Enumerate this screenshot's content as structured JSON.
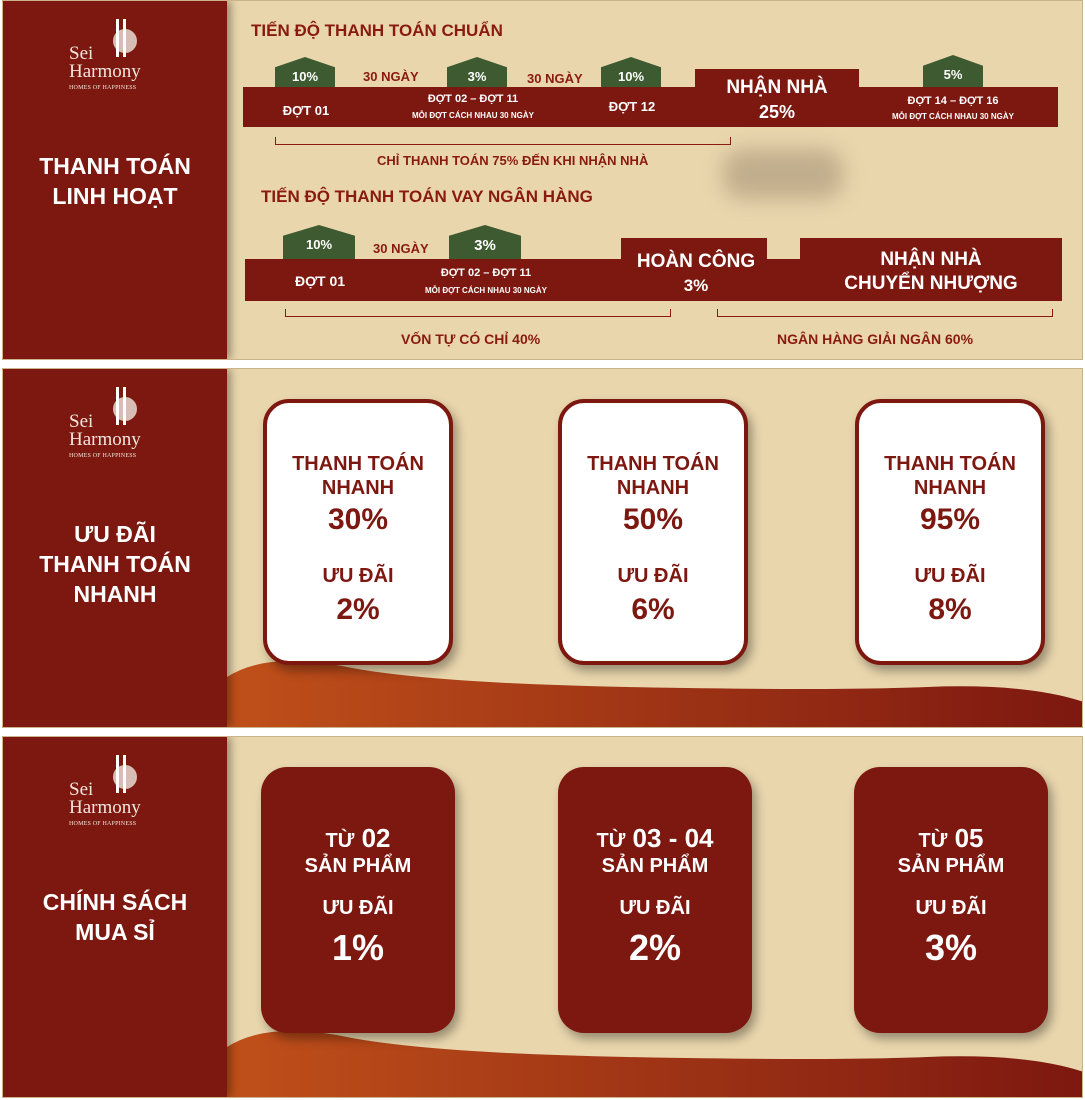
{
  "brand": {
    "name_line1": "Sei",
    "name_line2": "Harmony",
    "tagline": "HOMES OF HAPPINESS"
  },
  "colors": {
    "primary": "#7d1810",
    "background": "#e9d6ad",
    "green": "#3d5a30",
    "accent": "#c85a1a"
  },
  "panel1": {
    "title_line1": "THANH TOÁN",
    "title_line2": "LINH HOẠT",
    "standard": {
      "heading": "TIẾN ĐỘ THANH TOÁN CHUẨN",
      "houses": [
        "10%",
        "3%",
        "10%",
        "5%"
      ],
      "gaps": [
        "30 NGÀY",
        "30 NGÀY"
      ],
      "stages": [
        {
          "label": "ĐỢT 01"
        },
        {
          "label": "ĐỢT 02 – ĐỢT 11",
          "note": "MỖI ĐỢT CÁCH NHAU 30 NGÀY"
        },
        {
          "label": "ĐỢT 12"
        },
        {
          "label": "NHẬN NHÀ",
          "value": "25%"
        },
        {
          "label": "ĐỢT 14 – ĐỢT 16",
          "note": "MỖI ĐỢT CÁCH NHAU 30 NGÀY"
        }
      ],
      "summary": "CHỈ THANH TOÁN 75% ĐẾN KHI NHẬN NHÀ"
    },
    "loan": {
      "heading": "TIẾN ĐỘ THANH TOÁN VAY NGÂN HÀNG",
      "houses": [
        "10%",
        "3%"
      ],
      "gap": "30 NGÀY",
      "stages": [
        {
          "label": "ĐỢT 01"
        },
        {
          "label": "ĐỢT 02 – ĐỢT 11",
          "note": "MỖI ĐỢT CÁCH NHAU 30 NGÀY"
        },
        {
          "label": "HOÀN CÔNG",
          "value": "3%"
        },
        {
          "label_line1": "NHẬN NHÀ",
          "label_line2": "CHUYỂN NHƯỢNG"
        }
      ],
      "summary_left": "VỐN TỰ CÓ CHỈ 40%",
      "summary_right": "NGÂN HÀNG GIẢI NGÂN 60%"
    }
  },
  "panel2": {
    "title_line1": "ƯU ĐÃI",
    "title_line2": "THANH TOÁN",
    "title_line3": "NHANH",
    "cards": [
      {
        "line1": "THANH TOÁN",
        "line2": "NHANH",
        "pay": "30%",
        "offer_label": "ƯU ĐÃI",
        "offer": "2%"
      },
      {
        "line1": "THANH TOÁN",
        "line2": "NHANH",
        "pay": "50%",
        "offer_label": "ƯU ĐÃI",
        "offer": "6%"
      },
      {
        "line1": "THANH TOÁN",
        "line2": "NHANH",
        "pay": "95%",
        "offer_label": "ƯU ĐÃI",
        "offer": "8%"
      }
    ]
  },
  "panel3": {
    "title_line1": "CHÍNH SÁCH",
    "title_line2": "MUA SỈ",
    "cards": [
      {
        "from": "TỪ",
        "qty": "02",
        "unit": "SẢN PHẨM",
        "offer_label": "ƯU ĐÃI",
        "offer": "1%"
      },
      {
        "from": "TỪ",
        "qty": "03 - 04",
        "unit": "SẢN PHẨM",
        "offer_label": "ƯU ĐÃI",
        "offer": "2%"
      },
      {
        "from": "TỪ",
        "qty": "05",
        "unit": "SẢN PHẨM",
        "offer_label": "ƯU ĐÃI",
        "offer": "3%"
      }
    ]
  }
}
